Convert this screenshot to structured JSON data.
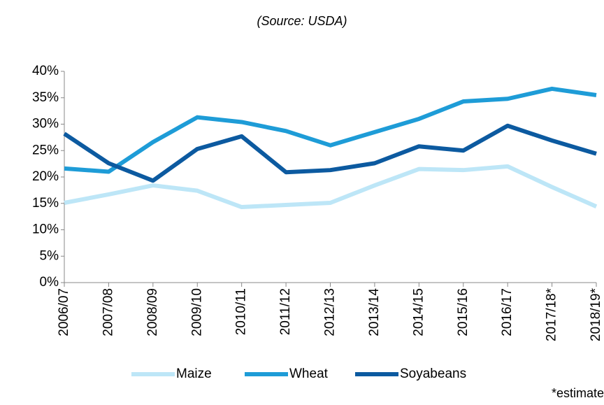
{
  "chart_data": {
    "type": "line",
    "subtitle": "(Source: USDA)",
    "annotation": "*estimate",
    "categories": [
      "2006/07",
      "2007/08",
      "2008/09",
      "2009/10",
      "2010/11",
      "2011/12",
      "2012/13",
      "2013/14",
      "2014/15",
      "2015/16",
      "2016/17",
      "2017/18*",
      "2018/19*"
    ],
    "series": [
      {
        "name": "Maize",
        "color": "#bde6f7",
        "values": [
          15.1,
          16.7,
          18.4,
          17.4,
          14.3,
          14.7,
          15.1,
          18.4,
          21.5,
          21.3,
          22.0,
          18.1,
          14.4
        ]
      },
      {
        "name": "Wheat",
        "color": "#1e9cd7",
        "values": [
          21.6,
          21.0,
          26.6,
          31.3,
          30.4,
          28.7,
          26.0,
          28.5,
          31.0,
          34.3,
          34.8,
          36.7,
          35.5
        ]
      },
      {
        "name": "Soyabeans",
        "color": "#0c5aa0",
        "values": [
          28.2,
          22.6,
          19.3,
          25.3,
          27.7,
          20.9,
          21.3,
          22.6,
          25.8,
          25.0,
          29.7,
          26.9,
          24.4
        ]
      }
    ],
    "ylim": [
      0,
      40
    ],
    "yticks": [
      {
        "value": 0,
        "label": "0%"
      },
      {
        "value": 5,
        "label": "5%"
      },
      {
        "value": 10,
        "label": "10%"
      },
      {
        "value": 15,
        "label": "15%"
      },
      {
        "value": 20,
        "label": "20%"
      },
      {
        "value": 25,
        "label": "25%"
      },
      {
        "value": 30,
        "label": "30%"
      },
      {
        "value": 35,
        "label": "35%"
      },
      {
        "value": 40,
        "label": "40%"
      }
    ],
    "legend": "bottom"
  }
}
